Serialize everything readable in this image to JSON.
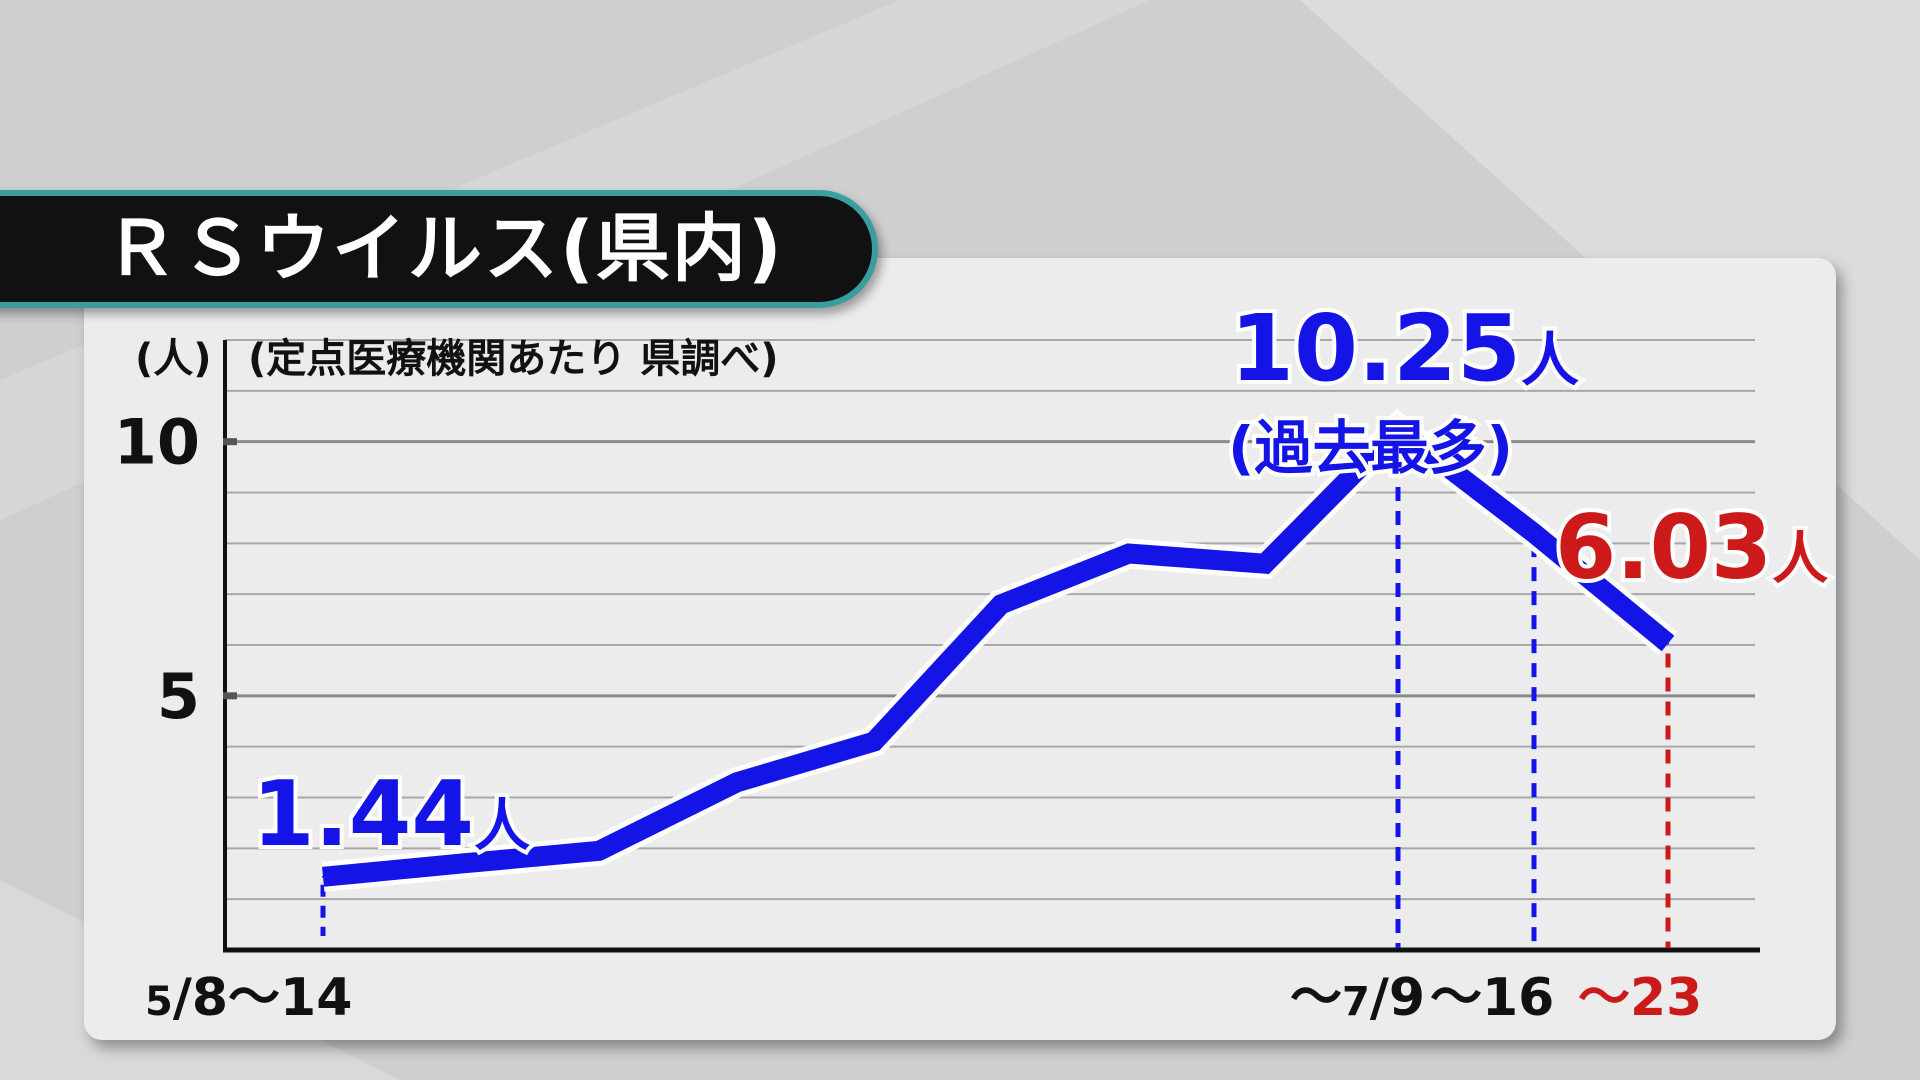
{
  "header": {
    "title": "ＲＳウイルス(県内)"
  },
  "chart_data": {
    "type": "line",
    "ylabel": "(人)",
    "source_note": "(定点医療機関あたり 県調べ)",
    "ylim": [
      0,
      12
    ],
    "yticks": [
      "5",
      "10"
    ],
    "grid": true,
    "x_start_label": "5/8〜14",
    "x_end_labels": [
      {
        "text": "〜7/9",
        "color": "#111111"
      },
      {
        "text": "〜16",
        "color": "#111111"
      },
      {
        "text": "〜23",
        "color": "#cc1a1a"
      }
    ],
    "series": [
      {
        "color": "#1414e6",
        "values": [
          1.44,
          1.7,
          1.95,
          3.3,
          4.1,
          6.8,
          7.8,
          7.6,
          10.25,
          8.2,
          6.03
        ]
      }
    ],
    "annotations": [
      {
        "value_text": "1.44",
        "unit": "人",
        "color": "#1414e6"
      },
      {
        "value_text": "10.25",
        "unit": "人",
        "color": "#1414e6",
        "sub": "(過去最多)"
      },
      {
        "value_text": "6.03",
        "unit": "人",
        "color": "#cc1a1a"
      }
    ],
    "colors": {
      "line": "#1414e6",
      "highlight": "#cc1a1a",
      "title_border": "#3a9ea0"
    }
  }
}
